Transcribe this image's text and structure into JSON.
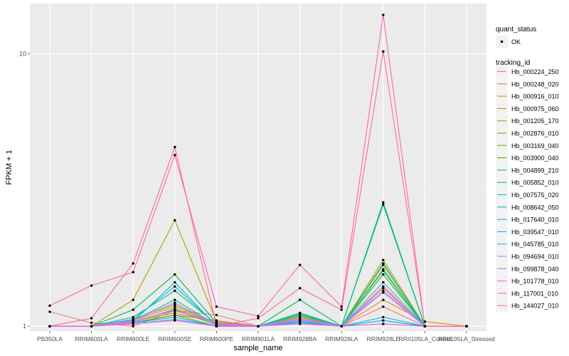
{
  "chart_data": {
    "type": "line",
    "title": "",
    "xlabel": "sample_name",
    "ylabel": "FPKM + 1",
    "y_scale": "log10",
    "ylim": [
      0.96,
      15.3
    ],
    "y_ticks": [
      {
        "value": 1,
        "label": "1"
      },
      {
        "value": 10,
        "label": "10"
      }
    ],
    "grid": true,
    "legend_position": "right",
    "categories": [
      "PB350LA",
      "RRIM600LA",
      "RRIM600LE",
      "RRIM600SE",
      "RRIM600PE",
      "RRIM901LA",
      "RRIM928BA",
      "RRIM928LA",
      "RRIM928LE",
      "RRII105LA_Control",
      "RRII105LA_Stressed"
    ],
    "legend_quant": {
      "title": "quant_status",
      "items": [
        {
          "label": "OK",
          "color": "#000000"
        }
      ]
    },
    "legend_tracking": {
      "title": "tracking_id"
    },
    "series": [
      {
        "name": "Hb_000224_250",
        "color": "#F8766D",
        "values": [
          1.13,
          1.03,
          1.0,
          1.14,
          1.1,
          1.0,
          1.02,
          1.0,
          1.18,
          1.0,
          1.0
        ]
      },
      {
        "name": "Hb_000248_020",
        "color": "#EC8239",
        "values": [
          1.0,
          1.0,
          1.03,
          1.1,
          1.05,
          1.0,
          1.04,
          1.0,
          1.02,
          1.0,
          1.0
        ]
      },
      {
        "name": "Hb_000916_010",
        "color": "#DB8E00",
        "values": [
          1.0,
          1.0,
          1.04,
          1.12,
          1.03,
          1.0,
          1.06,
          1.0,
          1.25,
          1.04,
          1.0
        ]
      },
      {
        "name": "Hb_000975_060",
        "color": "#C79800",
        "values": [
          1.0,
          1.0,
          1.05,
          1.18,
          1.02,
          1.0,
          1.08,
          1.0,
          1.4,
          1.0,
          1.0
        ]
      },
      {
        "name": "Hb_001205_170",
        "color": "#AFA100",
        "values": [
          1.0,
          1.0,
          1.25,
          2.45,
          1.04,
          1.0,
          1.1,
          1.0,
          1.75,
          1.0,
          1.0
        ]
      },
      {
        "name": "Hb_002876_010",
        "color": "#94A900",
        "values": [
          1.0,
          1.0,
          1.06,
          1.2,
          1.02,
          1.0,
          1.09,
          1.0,
          1.68,
          1.0,
          1.0
        ]
      },
      {
        "name": "Hb_003169_040",
        "color": "#72B000",
        "values": [
          1.0,
          1.0,
          1.04,
          1.15,
          1.01,
          1.0,
          1.07,
          1.0,
          1.62,
          1.0,
          1.0
        ]
      },
      {
        "name": "Hb_003900_040",
        "color": "#39B600",
        "values": [
          1.0,
          1.0,
          1.03,
          1.1,
          1.0,
          1.0,
          1.06,
          1.0,
          1.55,
          1.0,
          1.0
        ]
      },
      {
        "name": "Hb_004899_210",
        "color": "#00BB4E",
        "values": [
          1.0,
          1.0,
          1.15,
          1.55,
          1.03,
          1.0,
          1.25,
          1.0,
          2.8,
          1.0,
          1.0
        ]
      },
      {
        "name": "Hb_005852_010",
        "color": "#00BF7D",
        "values": [
          1.0,
          1.0,
          1.08,
          1.35,
          1.02,
          1.0,
          1.12,
          1.0,
          2.85,
          1.0,
          1.0
        ]
      },
      {
        "name": "Hb_007575_020",
        "color": "#00C1A3",
        "values": [
          1.0,
          1.0,
          1.05,
          1.25,
          1.01,
          1.0,
          1.1,
          1.0,
          1.7,
          1.0,
          1.0
        ]
      },
      {
        "name": "Hb_008642_050",
        "color": "#00C0C6",
        "values": [
          1.0,
          1.0,
          1.06,
          1.4,
          1.01,
          1.0,
          1.11,
          1.0,
          1.6,
          1.0,
          1.0
        ]
      },
      {
        "name": "Hb_017640_010",
        "color": "#00BAE3",
        "values": [
          1.0,
          1.0,
          1.04,
          1.45,
          1.0,
          1.0,
          1.05,
          1.0,
          1.08,
          1.0,
          1.0
        ]
      },
      {
        "name": "Hb_039547_010",
        "color": "#00B0F6",
        "values": [
          1.0,
          1.0,
          1.03,
          1.08,
          1.0,
          1.0,
          1.04,
          1.0,
          1.05,
          1.0,
          1.0
        ]
      },
      {
        "name": "Hb_045785_010",
        "color": "#35A2FF",
        "values": [
          1.0,
          1.0,
          1.02,
          1.06,
          1.0,
          1.0,
          1.03,
          1.0,
          1.45,
          1.0,
          1.0
        ]
      },
      {
        "name": "Hb_094694_010",
        "color": "#9590FF",
        "values": [
          1.0,
          1.0,
          1.03,
          1.16,
          1.02,
          1.0,
          1.05,
          1.0,
          1.33,
          1.0,
          1.0
        ]
      },
      {
        "name": "Hb_099878_040",
        "color": "#C77CFF",
        "values": [
          1.0,
          1.0,
          1.04,
          1.14,
          1.03,
          1.0,
          1.06,
          1.0,
          1.35,
          1.0,
          1.0
        ]
      },
      {
        "name": "Hb_101778_010",
        "color": "#E76BF3",
        "values": [
          1.0,
          1.0,
          1.05,
          1.22,
          1.01,
          1.0,
          1.07,
          1.0,
          1.38,
          1.0,
          1.0
        ]
      },
      {
        "name": "Hb_117001_010",
        "color": "#FA62DB",
        "values": [
          1.0,
          1.0,
          1.02,
          1.05,
          1.0,
          1.0,
          1.02,
          1.0,
          1.02,
          1.0,
          1.0
        ]
      },
      {
        "name": "Hb_144027_010",
        "color": "#FF62BC",
        "values": [
          1.19,
          1.41,
          1.58,
          4.25,
          1.18,
          1.09,
          1.68,
          1.18,
          13.9,
          1.0,
          1.0
        ]
      },
      {
        "name": "",
        "color": "#FF6C91",
        "values": [
          1.0,
          1.07,
          1.7,
          4.55,
          1.0,
          1.07,
          1.38,
          1.15,
          10.2,
          1.0,
          1.0
        ]
      }
    ]
  }
}
